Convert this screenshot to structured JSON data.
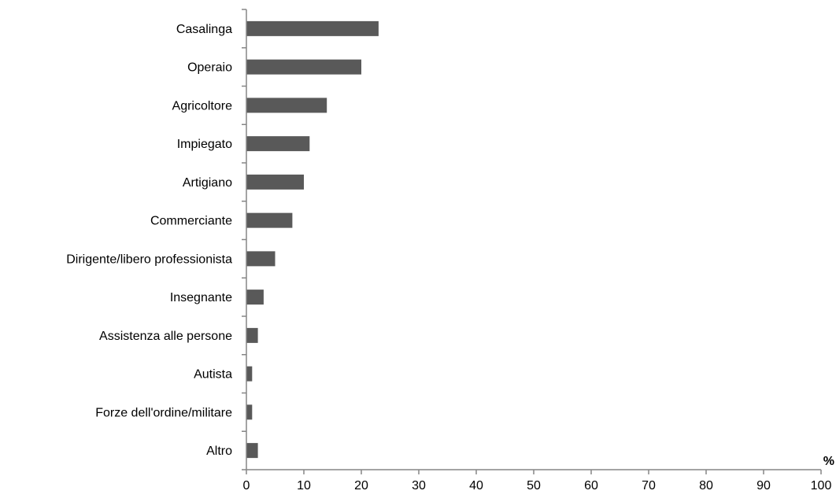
{
  "chart_data": {
    "type": "bar",
    "orientation": "horizontal",
    "categories": [
      "Casalinga",
      "Operaio",
      "Agricoltore",
      "Impiegato",
      "Artigiano",
      "Commerciante",
      "Dirigente/libero professionista",
      "Insegnante",
      "Assistenza alle persone",
      "Autista",
      "Forze dell'ordine/militare",
      "Altro"
    ],
    "values": [
      23,
      20,
      14,
      11,
      10,
      8,
      5,
      3,
      2,
      1,
      1,
      2
    ],
    "xlabel": "%",
    "xlim": [
      0,
      100
    ],
    "xticks": [
      0,
      10,
      20,
      30,
      40,
      50,
      60,
      70,
      80,
      90,
      100
    ],
    "grid": false,
    "legend": "none",
    "colors": {
      "bar": "#595959",
      "axis": "#868686",
      "text": "#000000"
    }
  }
}
